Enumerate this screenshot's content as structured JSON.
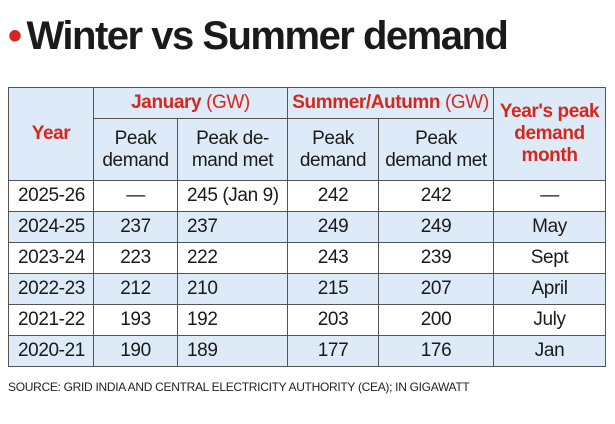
{
  "title": "Winter vs Summer demand",
  "table": {
    "header": {
      "year": "Year",
      "january": {
        "name": "January",
        "unit": "(GW)"
      },
      "summer": {
        "name": "Summer/Autumn",
        "unit": "(GW)"
      },
      "peak_month": [
        "Year's peak",
        "demand",
        "month"
      ],
      "sub": [
        [
          "Peak",
          "demand"
        ],
        [
          "Peak de-",
          "mand met"
        ],
        [
          "Peak",
          "demand"
        ],
        [
          "Peak",
          "demand met"
        ]
      ]
    },
    "rows": [
      [
        "2025-26",
        "—",
        "245 (Jan 9)",
        "242",
        "242",
        "—"
      ],
      [
        "2024-25",
        "237",
        "237",
        "249",
        "249",
        "May"
      ],
      [
        "2023-24",
        "223",
        "222",
        "243",
        "239",
        "Sept"
      ],
      [
        "2022-23",
        "212",
        "210",
        "215",
        "207",
        "April"
      ],
      [
        "2021-22",
        "193",
        "192",
        "203",
        "200",
        "July"
      ],
      [
        "2020-21",
        "190",
        "189",
        "177",
        "176",
        "Jan"
      ]
    ]
  },
  "source": "SOURCE: GRID INDIA AND CENTRAL ELECTRICITY AUTHORITY (CEA); IN GIGAWATT"
}
